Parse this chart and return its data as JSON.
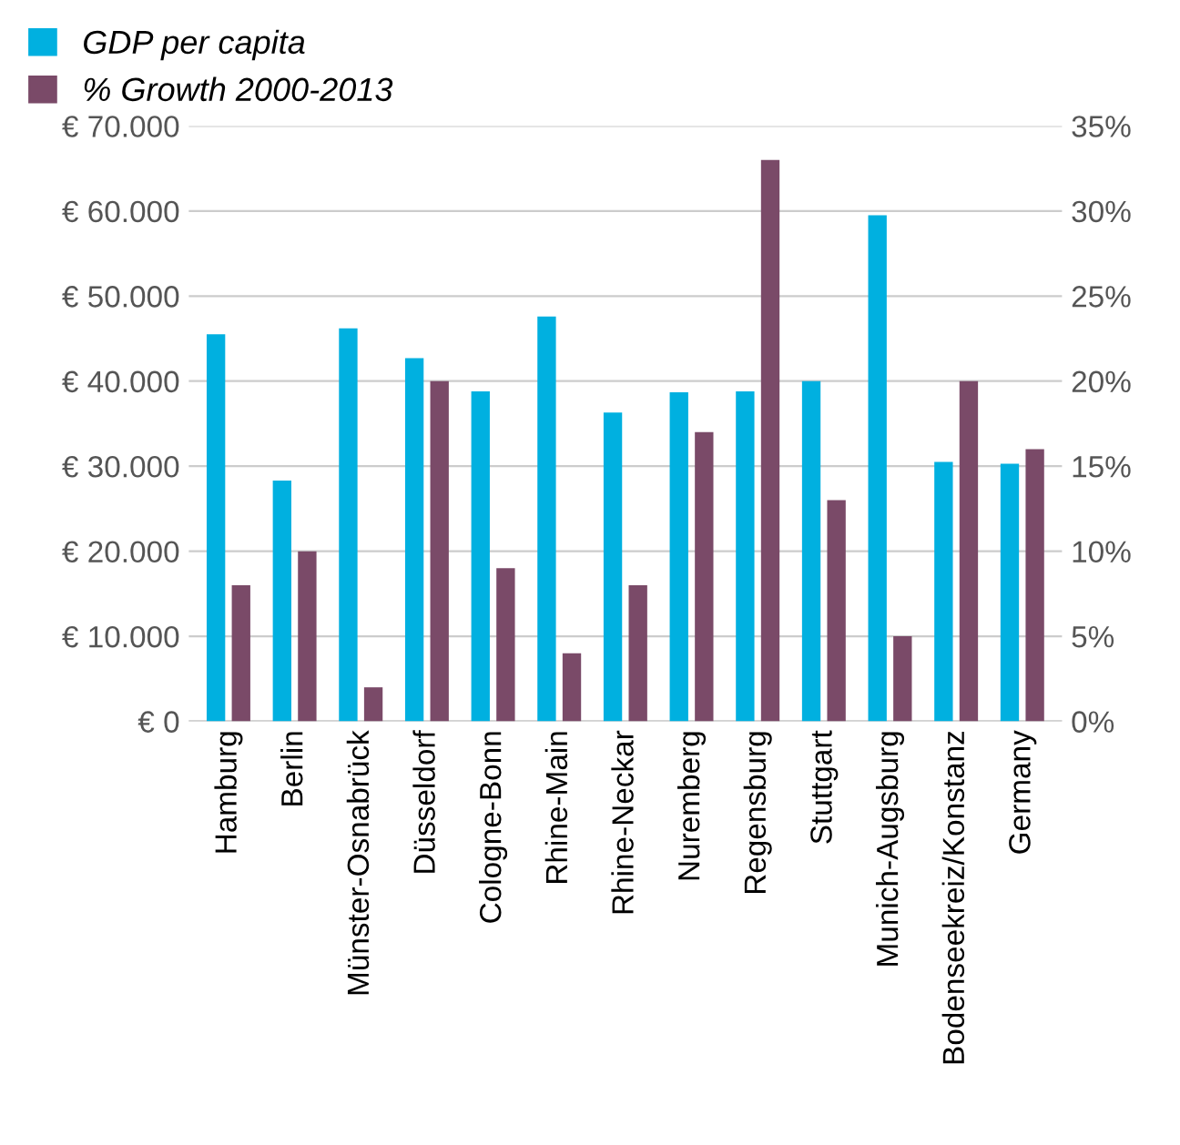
{
  "chart_data": {
    "type": "bar",
    "categories": [
      "Hamburg",
      "Berlin",
      "Münster-Osnabrück",
      "Düsseldorf",
      "Cologne-Bonn",
      "Rhine-Main",
      "Rhine-Neckar",
      "Nuremberg",
      "Regensburg",
      "Stuttgart",
      "Munich-Augsburg",
      "Bodenseekreiz/Konstanz",
      "Germany"
    ],
    "series": [
      {
        "name": "GDP per capita",
        "color": "#00b0e0",
        "values": [
          45500,
          28300,
          46200,
          42700,
          38800,
          47600,
          36300,
          38700,
          38800,
          40000,
          59500,
          30500,
          30300
        ]
      },
      {
        "name": "% Growth 2000-2013",
        "color": "#7a4a68",
        "axis": "y2",
        "values": [
          8,
          10,
          2,
          20,
          9,
          4,
          8,
          17,
          33,
          13,
          5,
          20,
          16
        ]
      }
    ],
    "ylim": [
      0,
      70000
    ],
    "yticks": [
      {
        "value": 0,
        "label": "€ 0"
      },
      {
        "value": 10000,
        "label": "€ 10.000"
      },
      {
        "value": 20000,
        "label": "€ 20.000"
      },
      {
        "value": 30000,
        "label": "€ 30.000"
      },
      {
        "value": 40000,
        "label": "€ 40.000"
      },
      {
        "value": 50000,
        "label": "€ 50.000"
      },
      {
        "value": 60000,
        "label": "€ 60.000"
      },
      {
        "value": 70000,
        "label": "€ 70.000"
      }
    ],
    "y2lim": [
      0,
      35
    ],
    "y2ticks": [
      {
        "value": 0,
        "label": "0%"
      },
      {
        "value": 5,
        "label": "5%"
      },
      {
        "value": 10,
        "label": "10%"
      },
      {
        "value": 15,
        "label": "15%"
      },
      {
        "value": 20,
        "label": "20%"
      },
      {
        "value": 25,
        "label": "25%"
      },
      {
        "value": 30,
        "label": "30%"
      },
      {
        "value": 35,
        "label": "35%"
      }
    ],
    "grid": "y",
    "legend": "top left"
  }
}
